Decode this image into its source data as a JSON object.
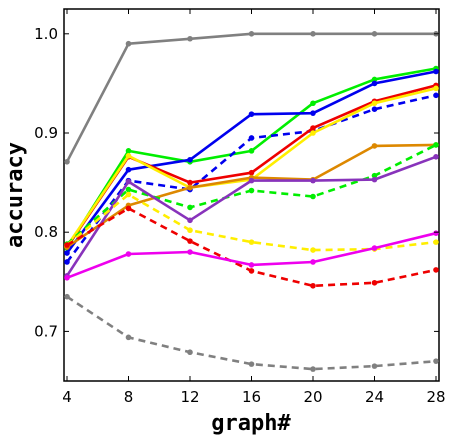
{
  "chart_data": {
    "type": "line",
    "xlabel": "graph#",
    "ylabel": "accuracy",
    "xlim": [
      4,
      28
    ],
    "ylim": [
      0.65,
      1.025
    ],
    "x": [
      4,
      8,
      12,
      16,
      20,
      24,
      28
    ],
    "xticks": [
      "4",
      "8",
      "12",
      "16",
      "20",
      "24",
      "28"
    ],
    "yticks": [
      {
        "value": 0.7,
        "label": "0.7"
      },
      {
        "value": 0.8,
        "label": "0.8"
      },
      {
        "value": 0.9,
        "label": "0.9"
      },
      {
        "value": 1.0,
        "label": "1.0"
      }
    ],
    "grid": false,
    "series": [
      {
        "color": "#808080",
        "dash": false,
        "values": [
          0.871,
          0.99,
          0.995,
          1.0,
          1.0,
          1.0,
          1.0
        ]
      },
      {
        "color": "#808080",
        "dash": true,
        "values": [
          0.735,
          0.694,
          0.679,
          0.667,
          0.662,
          0.665,
          0.67
        ]
      },
      {
        "color": "#00ee00",
        "dash": false,
        "values": [
          0.784,
          0.882,
          0.871,
          0.882,
          0.93,
          0.954,
          0.965
        ]
      },
      {
        "color": "#0000ee",
        "dash": false,
        "values": [
          0.779,
          0.863,
          0.873,
          0.919,
          0.92,
          0.95,
          0.962
        ]
      },
      {
        "color": "#0000ee",
        "dash": true,
        "values": [
          0.77,
          0.852,
          0.843,
          0.895,
          0.902,
          0.924,
          0.938
        ]
      },
      {
        "color": "#ee0000",
        "dash": false,
        "values": [
          0.785,
          0.876,
          0.85,
          0.86,
          0.905,
          0.932,
          0.948
        ]
      },
      {
        "color": "#ffee00",
        "dash": false,
        "values": [
          0.786,
          0.877,
          0.845,
          0.853,
          0.9,
          0.93,
          0.945
        ]
      },
      {
        "color": "#dd8800",
        "dash": false,
        "values": [
          0.785,
          0.827,
          0.845,
          0.855,
          0.853,
          0.887,
          0.888
        ]
      },
      {
        "color": "#00ee00",
        "dash": true,
        "values": [
          0.788,
          0.843,
          0.825,
          0.842,
          0.836,
          0.857,
          0.888
        ]
      },
      {
        "color": "#8833bb",
        "dash": false,
        "values": [
          0.756,
          0.851,
          0.812,
          0.852,
          0.852,
          0.853,
          0.876
        ]
      },
      {
        "color": "#ffee00",
        "dash": true,
        "values": [
          0.787,
          0.838,
          0.802,
          0.79,
          0.782,
          0.783,
          0.79
        ]
      },
      {
        "color": "#ee0000",
        "dash": true,
        "values": [
          0.787,
          0.824,
          0.791,
          0.761,
          0.746,
          0.749,
          0.762
        ]
      },
      {
        "color": "#ee00ee",
        "dash": false,
        "values": [
          0.754,
          0.778,
          0.78,
          0.767,
          0.77,
          0.784,
          0.799
        ]
      }
    ]
  }
}
